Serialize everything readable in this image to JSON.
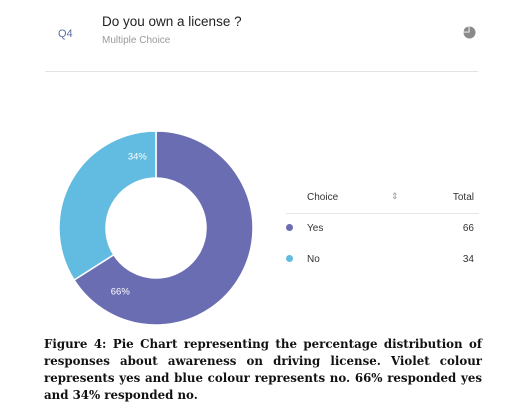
{
  "question": {
    "number": "Q4",
    "title": "Do you own a license ?",
    "type": "Multiple Choice",
    "chart_icon": "pie-chart-icon"
  },
  "table": {
    "header_choice": "Choice",
    "header_total": "Total",
    "sort_icon": "sort-icon",
    "rows": [
      {
        "label": "Yes",
        "value": "66",
        "color": "#6b6db3"
      },
      {
        "label": "No",
        "value": "34",
        "color": "#62bbe0"
      }
    ]
  },
  "chart_data": {
    "type": "pie",
    "style": "donut",
    "slices": [
      {
        "label": "Yes",
        "value": 66,
        "data_label": "66%",
        "color": "#6b6db3"
      },
      {
        "label": "No",
        "value": 34,
        "data_label": "34%",
        "color": "#62bbe0"
      }
    ]
  },
  "caption": "Figure 4: Pie Chart representing the percentage distribution of responses about awareness on driving license. Violet colour represents yes and blue colour represents no. 66% responded yes and 34% responded no."
}
